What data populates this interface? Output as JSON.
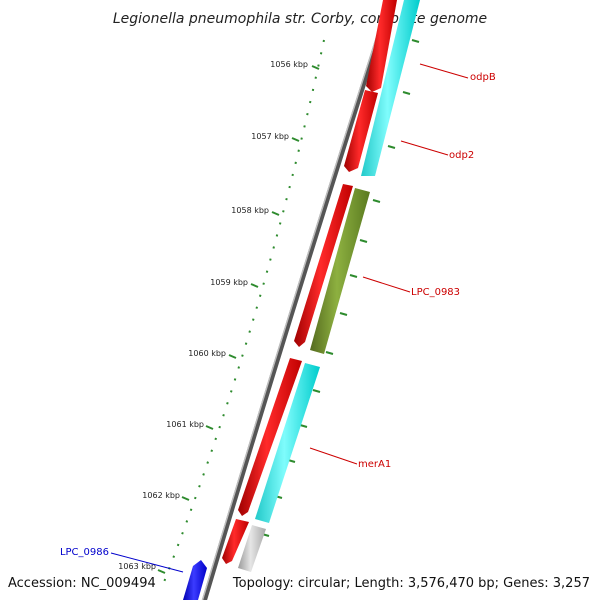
{
  "title": "Legionella pneumophila str. Corby, complete genome",
  "footer": {
    "accession": "Accession: NC_009494",
    "summary": "Topology: circular; Length: 3,576,470 bp; Genes: 3,257"
  },
  "ticks": [
    {
      "label": "1056 kbp"
    },
    {
      "label": "1057 kbp"
    },
    {
      "label": "1058 kbp"
    },
    {
      "label": "1059 kbp"
    },
    {
      "label": "1060 kbp"
    },
    {
      "label": "1061 kbp"
    },
    {
      "label": "1062 kbp"
    },
    {
      "label": "1063 kbp"
    }
  ],
  "genes": [
    {
      "name": "odpB",
      "color": "#cc0000"
    },
    {
      "name": "odp2",
      "color": "#cc0000"
    },
    {
      "name": "LPC_0983",
      "color": "#cc0000"
    },
    {
      "name": "merA1",
      "color": "#cc0000"
    },
    {
      "name": "LPC_0986",
      "color": "#0000cc"
    }
  ],
  "colors": {
    "cds": "#ff0000",
    "cyan_feature": "#00e5e5",
    "olive_feature": "#6b8e23",
    "grey_feature": "#bdbdbd",
    "blue_feature": "#0000ff",
    "tick_green": "#2e8b2e",
    "backbone": "#8c8c8c"
  }
}
